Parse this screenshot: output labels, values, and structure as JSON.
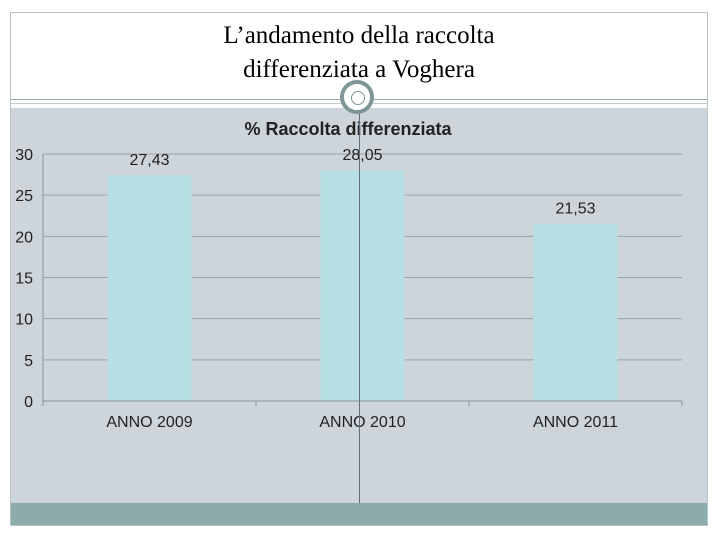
{
  "slide": {
    "title_line1": "L’andamento della raccolta",
    "title_line2": "differenziata a Voghera"
  },
  "colors": {
    "bar": "#b8dfe3",
    "background": "#cdd5da",
    "grid": "#9aa3a8",
    "footer": "#8cabab",
    "accent_ring": "#7e9696"
  },
  "icons": {
    "title_divider": "ring-icon"
  },
  "chart_data": {
    "type": "bar",
    "title": "% Raccolta differenziata",
    "categories": [
      "ANNO 2009",
      "ANNO 2010",
      "ANNO 2011"
    ],
    "values": [
      27.43,
      28.05,
      21.53
    ],
    "value_labels": [
      "27,43",
      "28,05",
      "21,53"
    ],
    "xlabel": "",
    "ylabel": "",
    "ylim": [
      0,
      30
    ],
    "yticks": [
      "0",
      "5",
      "10",
      "15",
      "20",
      "25",
      "30"
    ],
    "grid": true,
    "legend": "none"
  }
}
